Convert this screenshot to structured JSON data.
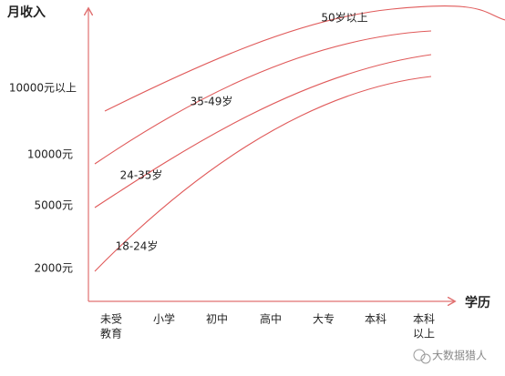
{
  "axes": {
    "y_title": "月收入",
    "x_title": "学历"
  },
  "y_labels": [
    "10000元以上",
    "10000元",
    "5000元",
    "2000元"
  ],
  "x_labels": [
    [
      "未受",
      "教育"
    ],
    [
      "小学"
    ],
    [
      "初中"
    ],
    [
      "高中"
    ],
    [
      "大专"
    ],
    [
      "本科"
    ],
    [
      "本科",
      "以上"
    ]
  ],
  "curves": [
    {
      "label": "50岁以上"
    },
    {
      "label": "35-49岁"
    },
    {
      "label": "24-35岁"
    },
    {
      "label": "18-24岁"
    }
  ],
  "watermark": "大数据猎人"
}
